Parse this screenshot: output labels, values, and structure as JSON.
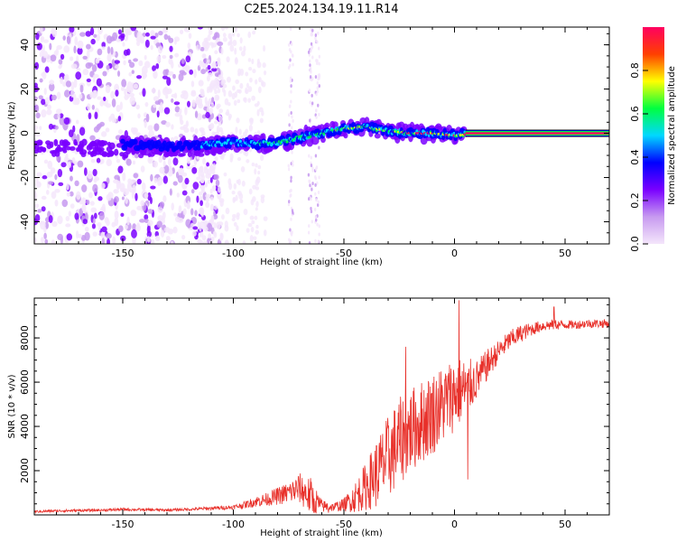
{
  "title": "C2E5.2024.134.19.11.R14",
  "chart_data": [
    {
      "type": "heatmap",
      "name": "spectrogram",
      "xlabel": "Height of straight line (km)",
      "ylabel": "Frequency (Hz)",
      "xlim": [
        -190,
        70
      ],
      "ylim": [
        -50,
        48
      ],
      "x_ticks": [
        -150,
        -100,
        -50,
        0,
        50
      ],
      "x_tick_labels": [
        "-150",
        "-100",
        "-50",
        "0",
        "50"
      ],
      "y_ticks": [
        -40,
        -20,
        0,
        20,
        40
      ],
      "y_tick_labels": [
        "-40",
        "-20",
        "0",
        "20",
        "40"
      ],
      "colorbar": {
        "label": "Normalized spectral amplitude",
        "range": [
          0,
          1
        ],
        "ticks": [
          0.0,
          0.2,
          0.4,
          0.6,
          0.8
        ],
        "tick_labels": [
          "0.0",
          "0.2",
          "0.4",
          "0.6",
          "0.8"
        ],
        "colors": [
          "#f4e6fb",
          "#c79af0",
          "#7a00ff",
          "#0000ff",
          "#00d8ff",
          "#00ff40",
          "#ffff00",
          "#ff4000",
          "#ff0060"
        ]
      },
      "features": {
        "noise_region": [
          -190,
          -115
        ],
        "trace_start": -150,
        "trace_points": [
          {
            "x": -150,
            "y": -5
          },
          {
            "x": -130,
            "y": -6
          },
          {
            "x": -110,
            "y": -5
          },
          {
            "x": -100,
            "y": -4
          },
          {
            "x": -90,
            "y": -5
          },
          {
            "x": -80,
            "y": -4
          },
          {
            "x": -70,
            "y": -2
          },
          {
            "x": -60,
            "y": 0
          },
          {
            "x": -50,
            "y": 2
          },
          {
            "x": -40,
            "y": 3
          },
          {
            "x": -30,
            "y": 1
          },
          {
            "x": -20,
            "y": 0
          },
          {
            "x": -10,
            "y": 0
          },
          {
            "x": 0,
            "y": -1
          },
          {
            "x": 10,
            "y": 0
          },
          {
            "x": 70,
            "y": 0
          }
        ],
        "stable_line_start": 5,
        "stable_line_frequency": 0
      }
    },
    {
      "type": "line",
      "name": "snr",
      "xlabel": "Height of straight line (km)",
      "ylabel": "SNR (10 * v/v)",
      "xlim": [
        -190,
        70
      ],
      "ylim": [
        0,
        9800
      ],
      "x_ticks": [
        -150,
        -100,
        -50,
        0,
        50
      ],
      "x_tick_labels": [
        "-150",
        "-100",
        "-50",
        "0",
        "50"
      ],
      "y_ticks": [
        2000,
        4000,
        6000,
        8000
      ],
      "y_tick_labels": [
        "2000",
        "4000",
        "6000",
        "8000"
      ],
      "color": "#e8302a",
      "series": [
        {
          "name": "SNR",
          "x": [
            -190,
            -180,
            -170,
            -160,
            -150,
            -140,
            -130,
            -120,
            -110,
            -100,
            -95,
            -90,
            -85,
            -80,
            -75,
            -70,
            -65,
            -60,
            -55,
            -50,
            -45,
            -40,
            -35,
            -30,
            -25,
            -20,
            -15,
            -10,
            -5,
            0,
            5,
            10,
            15,
            20,
            25,
            30,
            35,
            40,
            45,
            50,
            55,
            60,
            65,
            70
          ],
          "values": [
            150,
            180,
            200,
            210,
            250,
            230,
            220,
            250,
            300,
            350,
            450,
            600,
            700,
            850,
            1000,
            1200,
            800,
            400,
            350,
            450,
            800,
            1300,
            1900,
            2600,
            3300,
            3800,
            4200,
            4600,
            5000,
            5500,
            5700,
            6100,
            6800,
            7400,
            7900,
            8200,
            8400,
            8550,
            8600,
            8600,
            8600,
            8650,
            8650,
            8650
          ],
          "noise": [
            60,
            60,
            60,
            60,
            70,
            60,
            60,
            60,
            80,
            100,
            150,
            250,
            300,
            400,
            500,
            700,
            900,
            300,
            200,
            300,
            700,
            1100,
            1600,
            1900,
            2000,
            1900,
            1900,
            1900,
            1800,
            1700,
            1400,
            900,
            700,
            500,
            450,
            400,
            300,
            250,
            250,
            200,
            200,
            200,
            200,
            200
          ],
          "spikes": [
            {
              "x": -22,
              "y": 7600
            },
            {
              "x": 2,
              "y": 9700
            },
            {
              "x": 45,
              "y": 9400
            },
            {
              "x": 6,
              "y": 1600
            },
            {
              "x": -57,
              "y": 100
            }
          ]
        }
      ]
    }
  ]
}
